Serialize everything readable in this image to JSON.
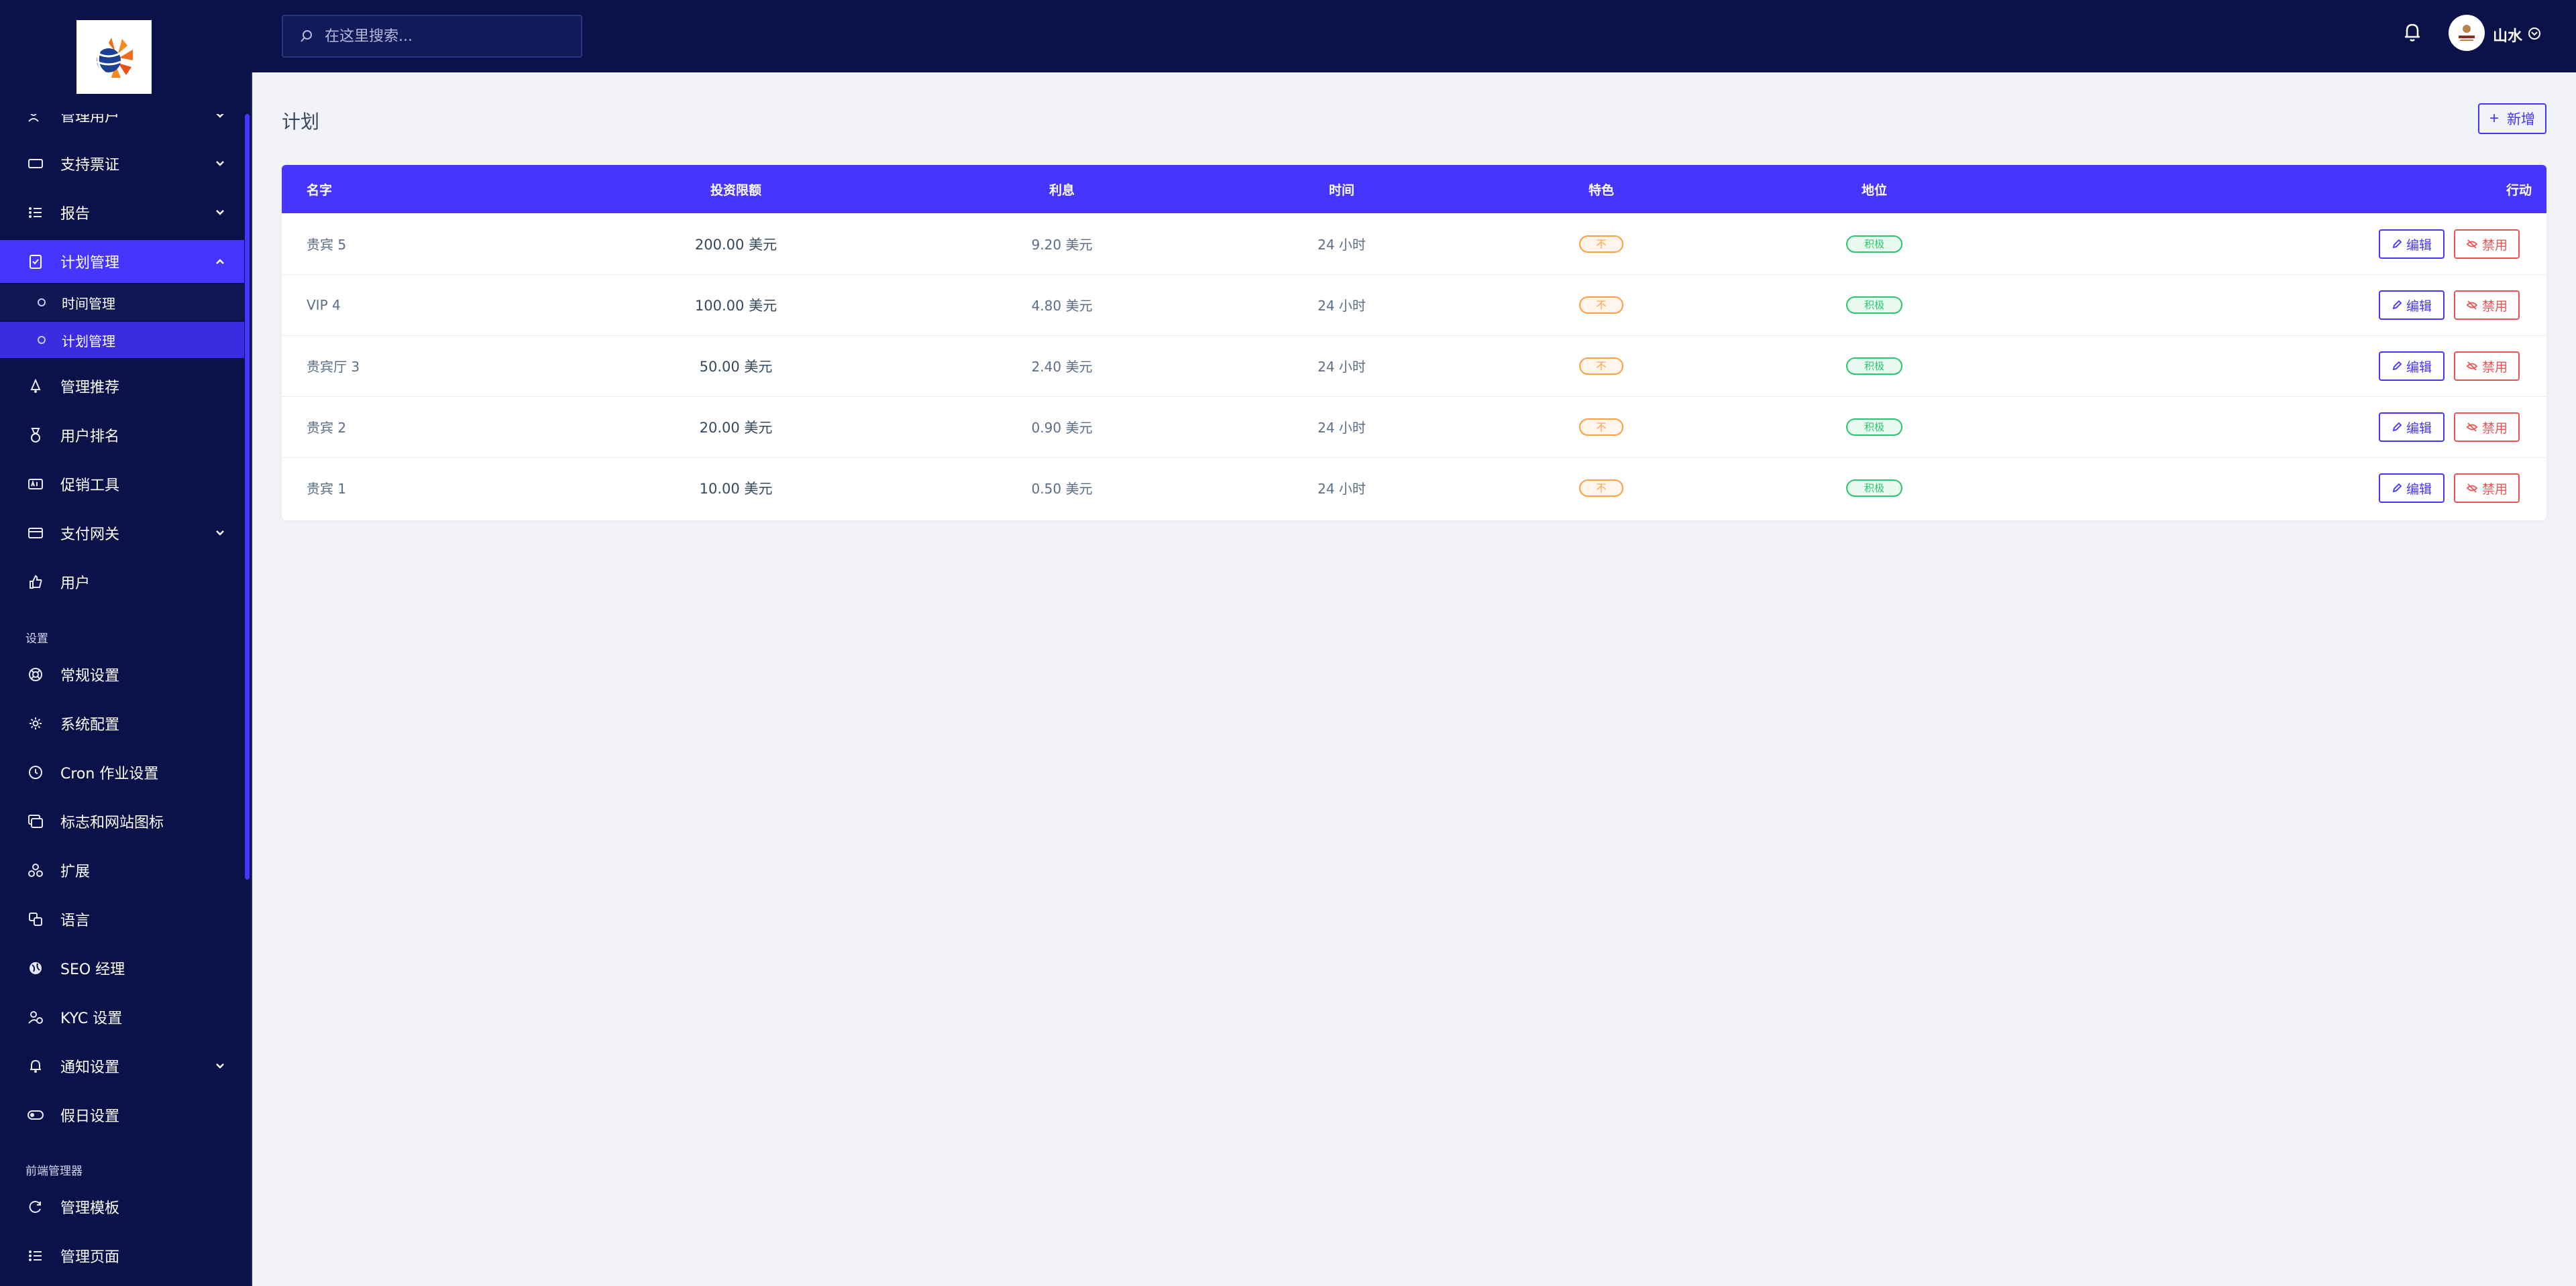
{
  "header": {
    "search_placeholder": "在这里搜索...",
    "user_name": "山水"
  },
  "sidebar": {
    "items": [
      {
        "label": "管理用户",
        "icon": "users-icon",
        "chevron": true
      },
      {
        "label": "支持票证",
        "icon": "ticket-icon",
        "chevron": true
      },
      {
        "label": "报告",
        "icon": "list-icon",
        "chevron": true
      },
      {
        "label": "计划管理",
        "icon": "clipboard-icon",
        "chevron": true,
        "expanded": true,
        "active": true
      },
      {
        "label": "管理推荐",
        "icon": "bell-shape-icon"
      },
      {
        "label": "用户排名",
        "icon": "medal-icon"
      },
      {
        "label": "促销工具",
        "icon": "ad-icon"
      },
      {
        "label": "支付网关",
        "icon": "credit-card-icon",
        "chevron": true
      },
      {
        "label": "用户",
        "icon": "thumbs-up-icon"
      }
    ],
    "sub_items": [
      {
        "label": "时间管理",
        "active": false
      },
      {
        "label": "计划管理",
        "active": true
      }
    ],
    "section_settings": "设置",
    "settings_items": [
      {
        "label": "常规设置",
        "icon": "life-ring-icon"
      },
      {
        "label": "系统配置",
        "icon": "gear-icon"
      },
      {
        "label": "Cron 作业设置",
        "icon": "clock-icon"
      },
      {
        "label": "标志和网站图标",
        "icon": "images-icon"
      },
      {
        "label": "扩展",
        "icon": "cubes-icon"
      },
      {
        "label": "语言",
        "icon": "language-icon"
      },
      {
        "label": "SEO 经理",
        "icon": "globe-icon"
      },
      {
        "label": "KYC 设置",
        "icon": "user-check-icon"
      },
      {
        "label": "通知设置",
        "icon": "bell-icon",
        "chevron": true
      },
      {
        "label": "假日设置",
        "icon": "toggle-icon"
      }
    ],
    "section_frontend": "前端管理器",
    "frontend_items": [
      {
        "label": "管理模板",
        "icon": "refresh-icon"
      },
      {
        "label": "管理页面",
        "icon": "list-icon"
      }
    ]
  },
  "main": {
    "title": "计划",
    "add_label": "新增"
  },
  "table": {
    "headers": {
      "name": "名字",
      "invest": "投资限额",
      "interest": "利息",
      "time": "时间",
      "feature": "特色",
      "status": "地位",
      "action": "行动"
    },
    "rows": [
      {
        "name": "贵宾 5",
        "invest": "200.00 美元",
        "interest": "9.20 美元",
        "time": "24 小时",
        "feature": "不",
        "status": "积极"
      },
      {
        "name": "VIP 4",
        "invest": "100.00 美元",
        "interest": "4.80 美元",
        "time": "24 小时",
        "feature": "不",
        "status": "积极"
      },
      {
        "name": "贵宾厅 3",
        "invest": "50.00 美元",
        "interest": "2.40 美元",
        "time": "24 小时",
        "feature": "不",
        "status": "积极"
      },
      {
        "name": "贵宾 2",
        "invest": "20.00 美元",
        "interest": "0.90 美元",
        "time": "24 小时",
        "feature": "不",
        "status": "积极"
      },
      {
        "name": "贵宾 1",
        "invest": "10.00 美元",
        "interest": "0.50 美元",
        "time": "24 小时",
        "feature": "不",
        "status": "积极"
      }
    ],
    "edit_label": "编辑",
    "disable_label": "禁用"
  },
  "colors": {
    "sidebar_bg": "#0b1249",
    "accent": "#4634ff",
    "danger": "#ea5455",
    "warning": "#ff9f43",
    "success": "#28c76f"
  }
}
